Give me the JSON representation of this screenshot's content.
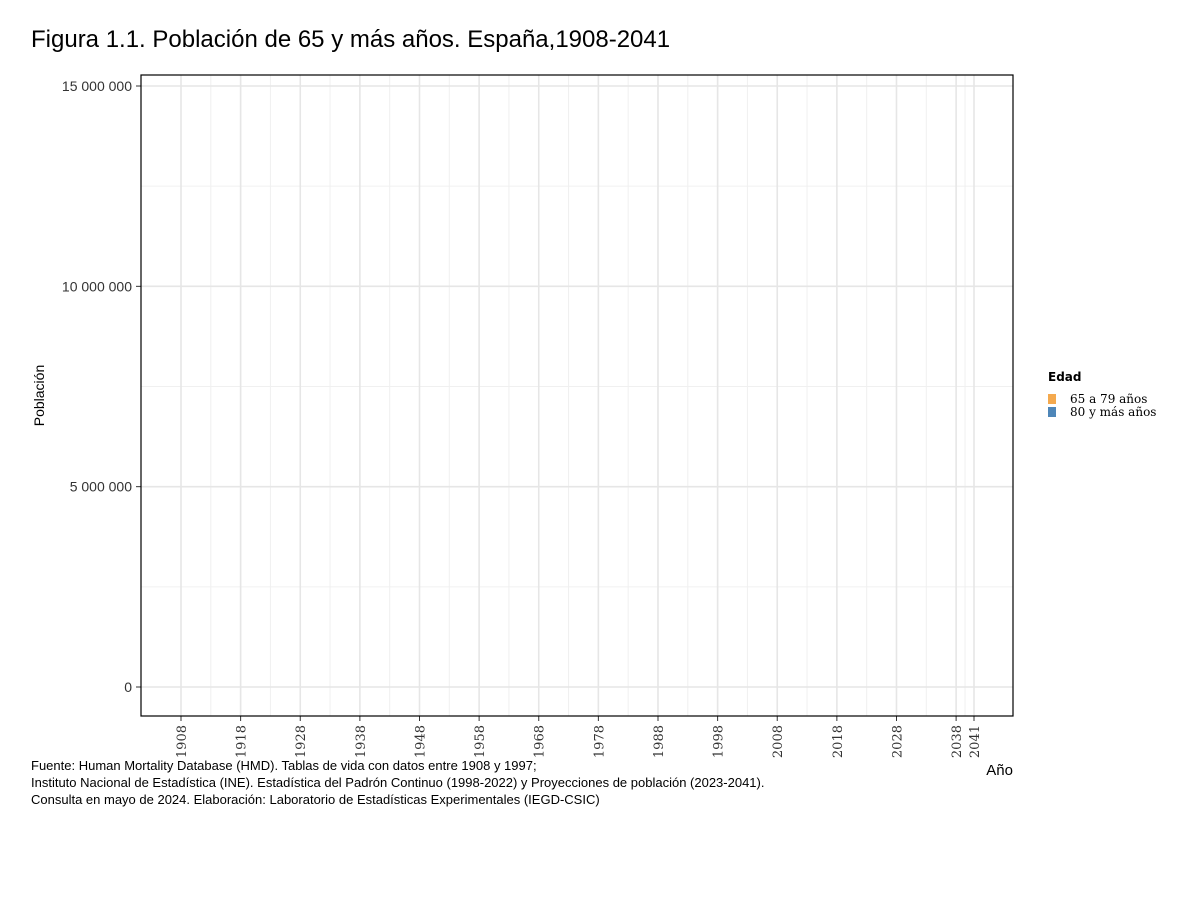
{
  "title": "Figura 1.1. Población de 65 y más años. España,1908-2041",
  "chart_data": {
    "type": "area",
    "title": "Figura 1.1. Población de 65 y más años. España,1908-2041",
    "xlabel": "Año",
    "ylabel": "Población",
    "x_ticks": [
      "1908",
      "1918",
      "1928",
      "1938",
      "1948",
      "1958",
      "1968",
      "1978",
      "1988",
      "1998",
      "2008",
      "2018",
      "2028",
      "2038",
      "2041"
    ],
    "xlim": [
      1908,
      2041
    ],
    "y_ticks": [
      0,
      5000000,
      10000000,
      15000000
    ],
    "y_tick_labels": [
      "0",
      "5 000 000",
      "10 000 000",
      "15 000 000"
    ],
    "ylim": [
      0,
      15000000
    ],
    "grid": true,
    "legend": {
      "title": "Edad",
      "position": "right",
      "items": [
        {
          "label": "65 a 79 años",
          "color": "#F4A94E"
        },
        {
          "label": "80 y más años",
          "color": "#4E86B8"
        }
      ]
    },
    "series": []
  },
  "caption": [
    "Fuente: Human Mortality Database (HMD). Tablas de vida con datos entre 1908 y 1997;",
    "Instituto Nacional de Estadística (INE). Estadística del Padrón Continuo (1998-2022) y Proyecciones de población (2023-2041).",
    "Consulta en mayo de 2024. Elaboración: Laboratorio de Estadísticas Experimentales (IEGD-CSIC)"
  ]
}
